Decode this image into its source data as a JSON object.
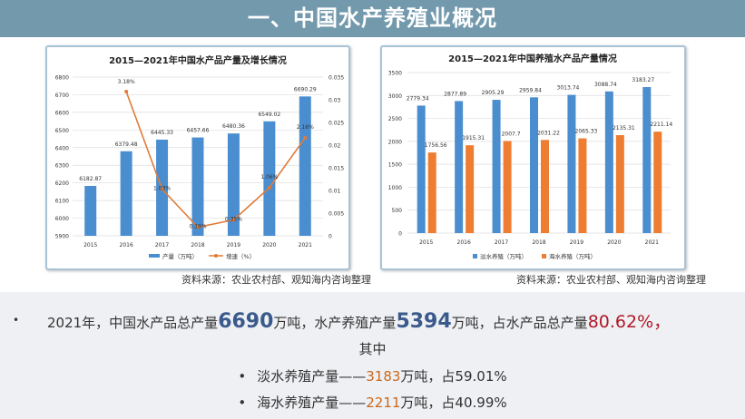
{
  "header": {
    "title": "一、中国水产养殖业概况"
  },
  "chart_data": [
    {
      "type": "bar+line",
      "title": "2015—2021年中国水产品产量及增长情况",
      "categories": [
        "2015",
        "2016",
        "2017",
        "2018",
        "2019",
        "2020",
        "2021"
      ],
      "series": [
        {
          "name": "产量（万吨）",
          "type": "bar",
          "axis": "left",
          "values": [
            6182.87,
            6379.48,
            6445.33,
            6457.66,
            6480.36,
            6549.02,
            6690.29
          ],
          "labels": [
            "6182.87",
            "6379.48",
            "6445.33",
            "6457.66",
            "6480.36",
            "6549.02",
            "6690.29"
          ],
          "color": "#4a8ed0"
        },
        {
          "name": "增速（%）",
          "type": "line",
          "axis": "right",
          "values": [
            null,
            0.0318,
            0.0103,
            0.0019,
            0.0035,
            0.0106,
            0.0216
          ],
          "labels": [
            "",
            "3.18%",
            "1.03%",
            "0.19%",
            "0.35%",
            "1.06%",
            "2.16%"
          ],
          "color": "#e07b39"
        }
      ],
      "ylim_left": [
        5900,
        6800
      ],
      "yticks_left": [
        "5900",
        "6000",
        "6100",
        "6200",
        "6300",
        "6400",
        "6500",
        "6600",
        "6700",
        "6800"
      ],
      "ylim_right": [
        0,
        0.035
      ],
      "yticks_right": [
        "0",
        "0.005",
        "0.01",
        "0.015",
        "0.02",
        "0.025",
        "0.03",
        "0.035"
      ],
      "grid": true,
      "legend": "bottom",
      "source": "资料来源：农业农村部、观知海内咨询整理"
    },
    {
      "type": "bar",
      "title": "2015—2021年中国养殖水产品产量情况",
      "categories": [
        "2015",
        "2016",
        "2017",
        "2018",
        "2019",
        "2020",
        "2021"
      ],
      "series": [
        {
          "name": "淡水养殖（万吨）",
          "values": [
            2779.34,
            2877.89,
            2905.29,
            2959.84,
            3013.74,
            3088.74,
            3183.27
          ],
          "labels": [
            "2779.34",
            "2877.89",
            "2905.29",
            "2959.84",
            "3013.74",
            "3088.74",
            "3183.27"
          ],
          "color": "#4a8ed0"
        },
        {
          "name": "海水养殖（万吨）",
          "values": [
            1756.56,
            1915.31,
            2007.7,
            2031.22,
            2065.33,
            2135.31,
            2211.14
          ],
          "labels": [
            "1756.56",
            "1915.31",
            "2007.7",
            "2031.22",
            "2065.33",
            "2135.31",
            "2211.14"
          ],
          "color": "#ee7d31"
        }
      ],
      "ylim": [
        0,
        3500
      ],
      "yticks": [
        "0",
        "500",
        "1000",
        "1500",
        "2000",
        "2500",
        "3000",
        "3500"
      ],
      "grid": true,
      "legend": "bottom",
      "source": "资料来源：农业农村部、观知海内咨询整理"
    }
  ],
  "summary": {
    "bullet": "•",
    "p1": "2021年，中国水产品总产量",
    "v1": "6690",
    "p2": "万吨，水产养殖产量",
    "v2": "5394",
    "p3": "万吨，占水产品总产量",
    "v3": "80.62%，",
    "p4": "其中",
    "items": [
      {
        "label": "淡水养殖产量——",
        "value": "3183",
        "rest": "万吨，占59.01%"
      },
      {
        "label": "海水养殖产量——",
        "value": "2211",
        "rest": "万吨，占40.99%"
      }
    ]
  }
}
